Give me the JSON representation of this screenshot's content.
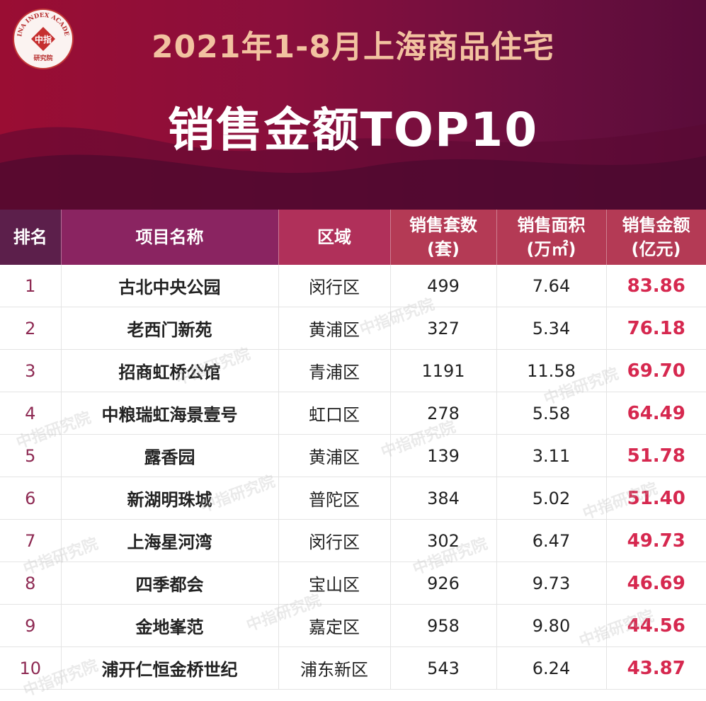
{
  "header": {
    "logo_text_arc": "CHINA INDEX ACADEMY",
    "logo_text_center": "中指",
    "logo_text_bottom": "研究院",
    "title_line1": "2021年1-8月上海商品住宅",
    "title_line2": "销售金额TOP10"
  },
  "table": {
    "headers": {
      "rank": "排名",
      "name": "项目名称",
      "area": "区域",
      "units_l1": "销售套数",
      "units_l2": "(套)",
      "size_l1": "销售面积",
      "size_l2": "(万㎡)",
      "amount_l1": "销售金额",
      "amount_l2": "(亿元)"
    },
    "rows": [
      {
        "rank": "1",
        "name": "古北中央公园",
        "area": "闵行区",
        "units": "499",
        "size": "7.64",
        "amount": "83.86"
      },
      {
        "rank": "2",
        "name": "老西门新苑",
        "area": "黄浦区",
        "units": "327",
        "size": "5.34",
        "amount": "76.18"
      },
      {
        "rank": "3",
        "name": "招商虹桥公馆",
        "area": "青浦区",
        "units": "1191",
        "size": "11.58",
        "amount": "69.70"
      },
      {
        "rank": "4",
        "name": "中粮瑞虹海景壹号",
        "area": "虹口区",
        "units": "278",
        "size": "5.58",
        "amount": "64.49"
      },
      {
        "rank": "5",
        "name": "露香园",
        "area": "黄浦区",
        "units": "139",
        "size": "3.11",
        "amount": "51.78"
      },
      {
        "rank": "6",
        "name": "新湖明珠城",
        "area": "普陀区",
        "units": "384",
        "size": "5.02",
        "amount": "51.40"
      },
      {
        "rank": "7",
        "name": "上海星河湾",
        "area": "闵行区",
        "units": "302",
        "size": "6.47",
        "amount": "49.73"
      },
      {
        "rank": "8",
        "name": "四季都会",
        "area": "宝山区",
        "units": "926",
        "size": "9.73",
        "amount": "46.69"
      },
      {
        "rank": "9",
        "name": "金地峯范",
        "area": "嘉定区",
        "units": "958",
        "size": "9.80",
        "amount": "44.56"
      },
      {
        "rank": "10",
        "name": "浦开仁恒金桥世纪",
        "area": "浦东新区",
        "units": "543",
        "size": "6.24",
        "amount": "43.87"
      }
    ]
  },
  "watermark": "中指研究院",
  "colors": {
    "banner": "#8a0f3c",
    "title_accent": "#f2c2a0",
    "amount_text": "#d6284f"
  }
}
